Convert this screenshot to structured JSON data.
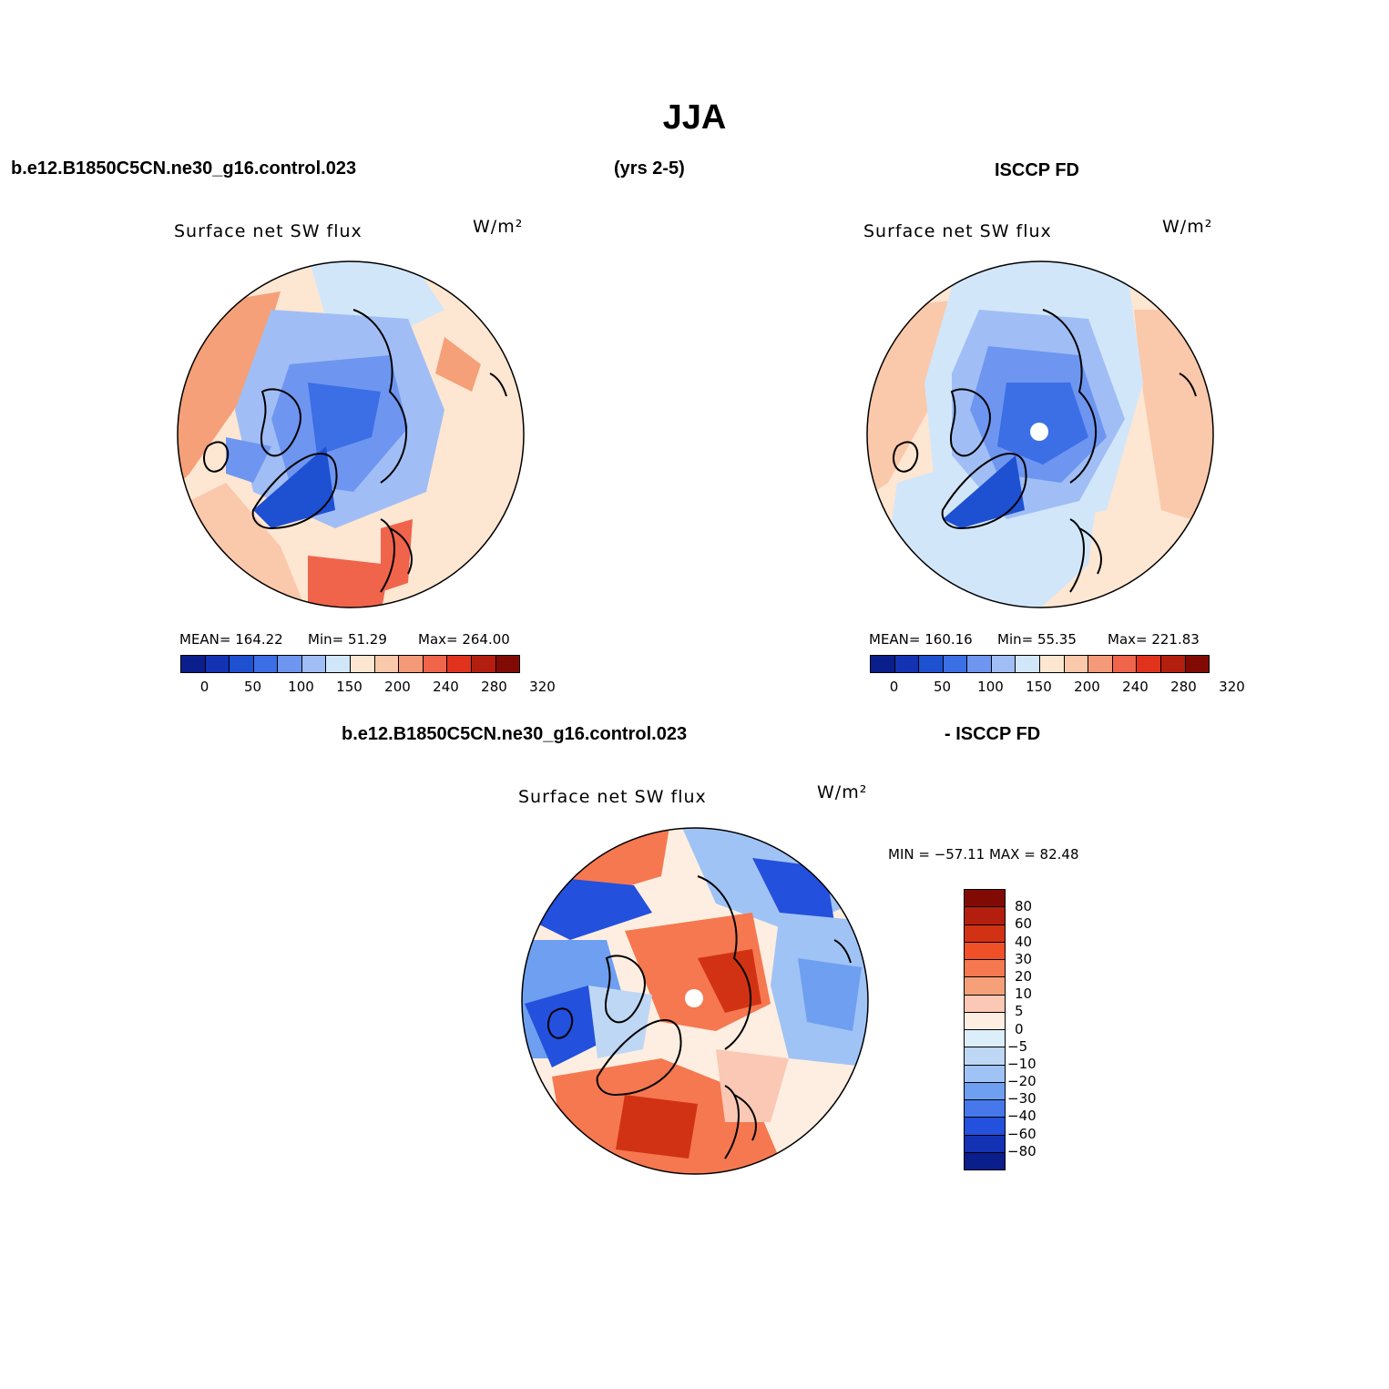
{
  "title": "JJA",
  "header": {
    "case": "b.e12.B1850C5CN.ne30_g16.control.023",
    "years": "(yrs 2-5)",
    "obs": "ISCCP FD"
  },
  "diff_header": {
    "case": "b.e12.B1850C5CN.ne30_g16.control.023",
    "obs": "- ISCCP FD"
  },
  "panels": {
    "model": {
      "title": "Surface net SW flux",
      "units": "W/m²",
      "mean": "MEAN= 164.22",
      "min": "Min=   51.29",
      "max": "Max= 264.00"
    },
    "obs": {
      "title": "Surface net SW flux",
      "units": "W/m²",
      "mean": "MEAN= 160.16",
      "min": "Min=   55.35",
      "max": "Max= 221.83"
    },
    "diff": {
      "title": "Surface net SW flux",
      "units": "W/m²",
      "minmax": "MIN = −57.11 MAX =   82.48"
    }
  },
  "abs_colorbar": {
    "colors": [
      "#0a1e8c",
      "#1432b4",
      "#1e50d2",
      "#3c6ee6",
      "#6e96f0",
      "#a0bef5",
      "#d2e6fa",
      "#fde6d2",
      "#fac8aa",
      "#f59a78",
      "#f0644b",
      "#e1321e",
      "#b41e0f",
      "#820a05"
    ],
    "labels": [
      "0",
      "50",
      "100",
      "150",
      "200",
      "240",
      "280",
      "320"
    ]
  },
  "diff_colorbar": {
    "colors": [
      "#820a05",
      "#b41e0f",
      "#d23214",
      "#f05028",
      "#f57850",
      "#f5a078",
      "#fac8b4",
      "#fdeee1",
      "#dceefa",
      "#bed7f5",
      "#a0c3f5",
      "#6e9ff0",
      "#4678eb",
      "#2350dc",
      "#1432b4",
      "#0a1e8c"
    ],
    "labels": [
      "80",
      "60",
      "40",
      "30",
      "20",
      "10",
      "5",
      "0",
      "−5",
      "−10",
      "−20",
      "−30",
      "−40",
      "−60",
      "−80"
    ]
  }
}
